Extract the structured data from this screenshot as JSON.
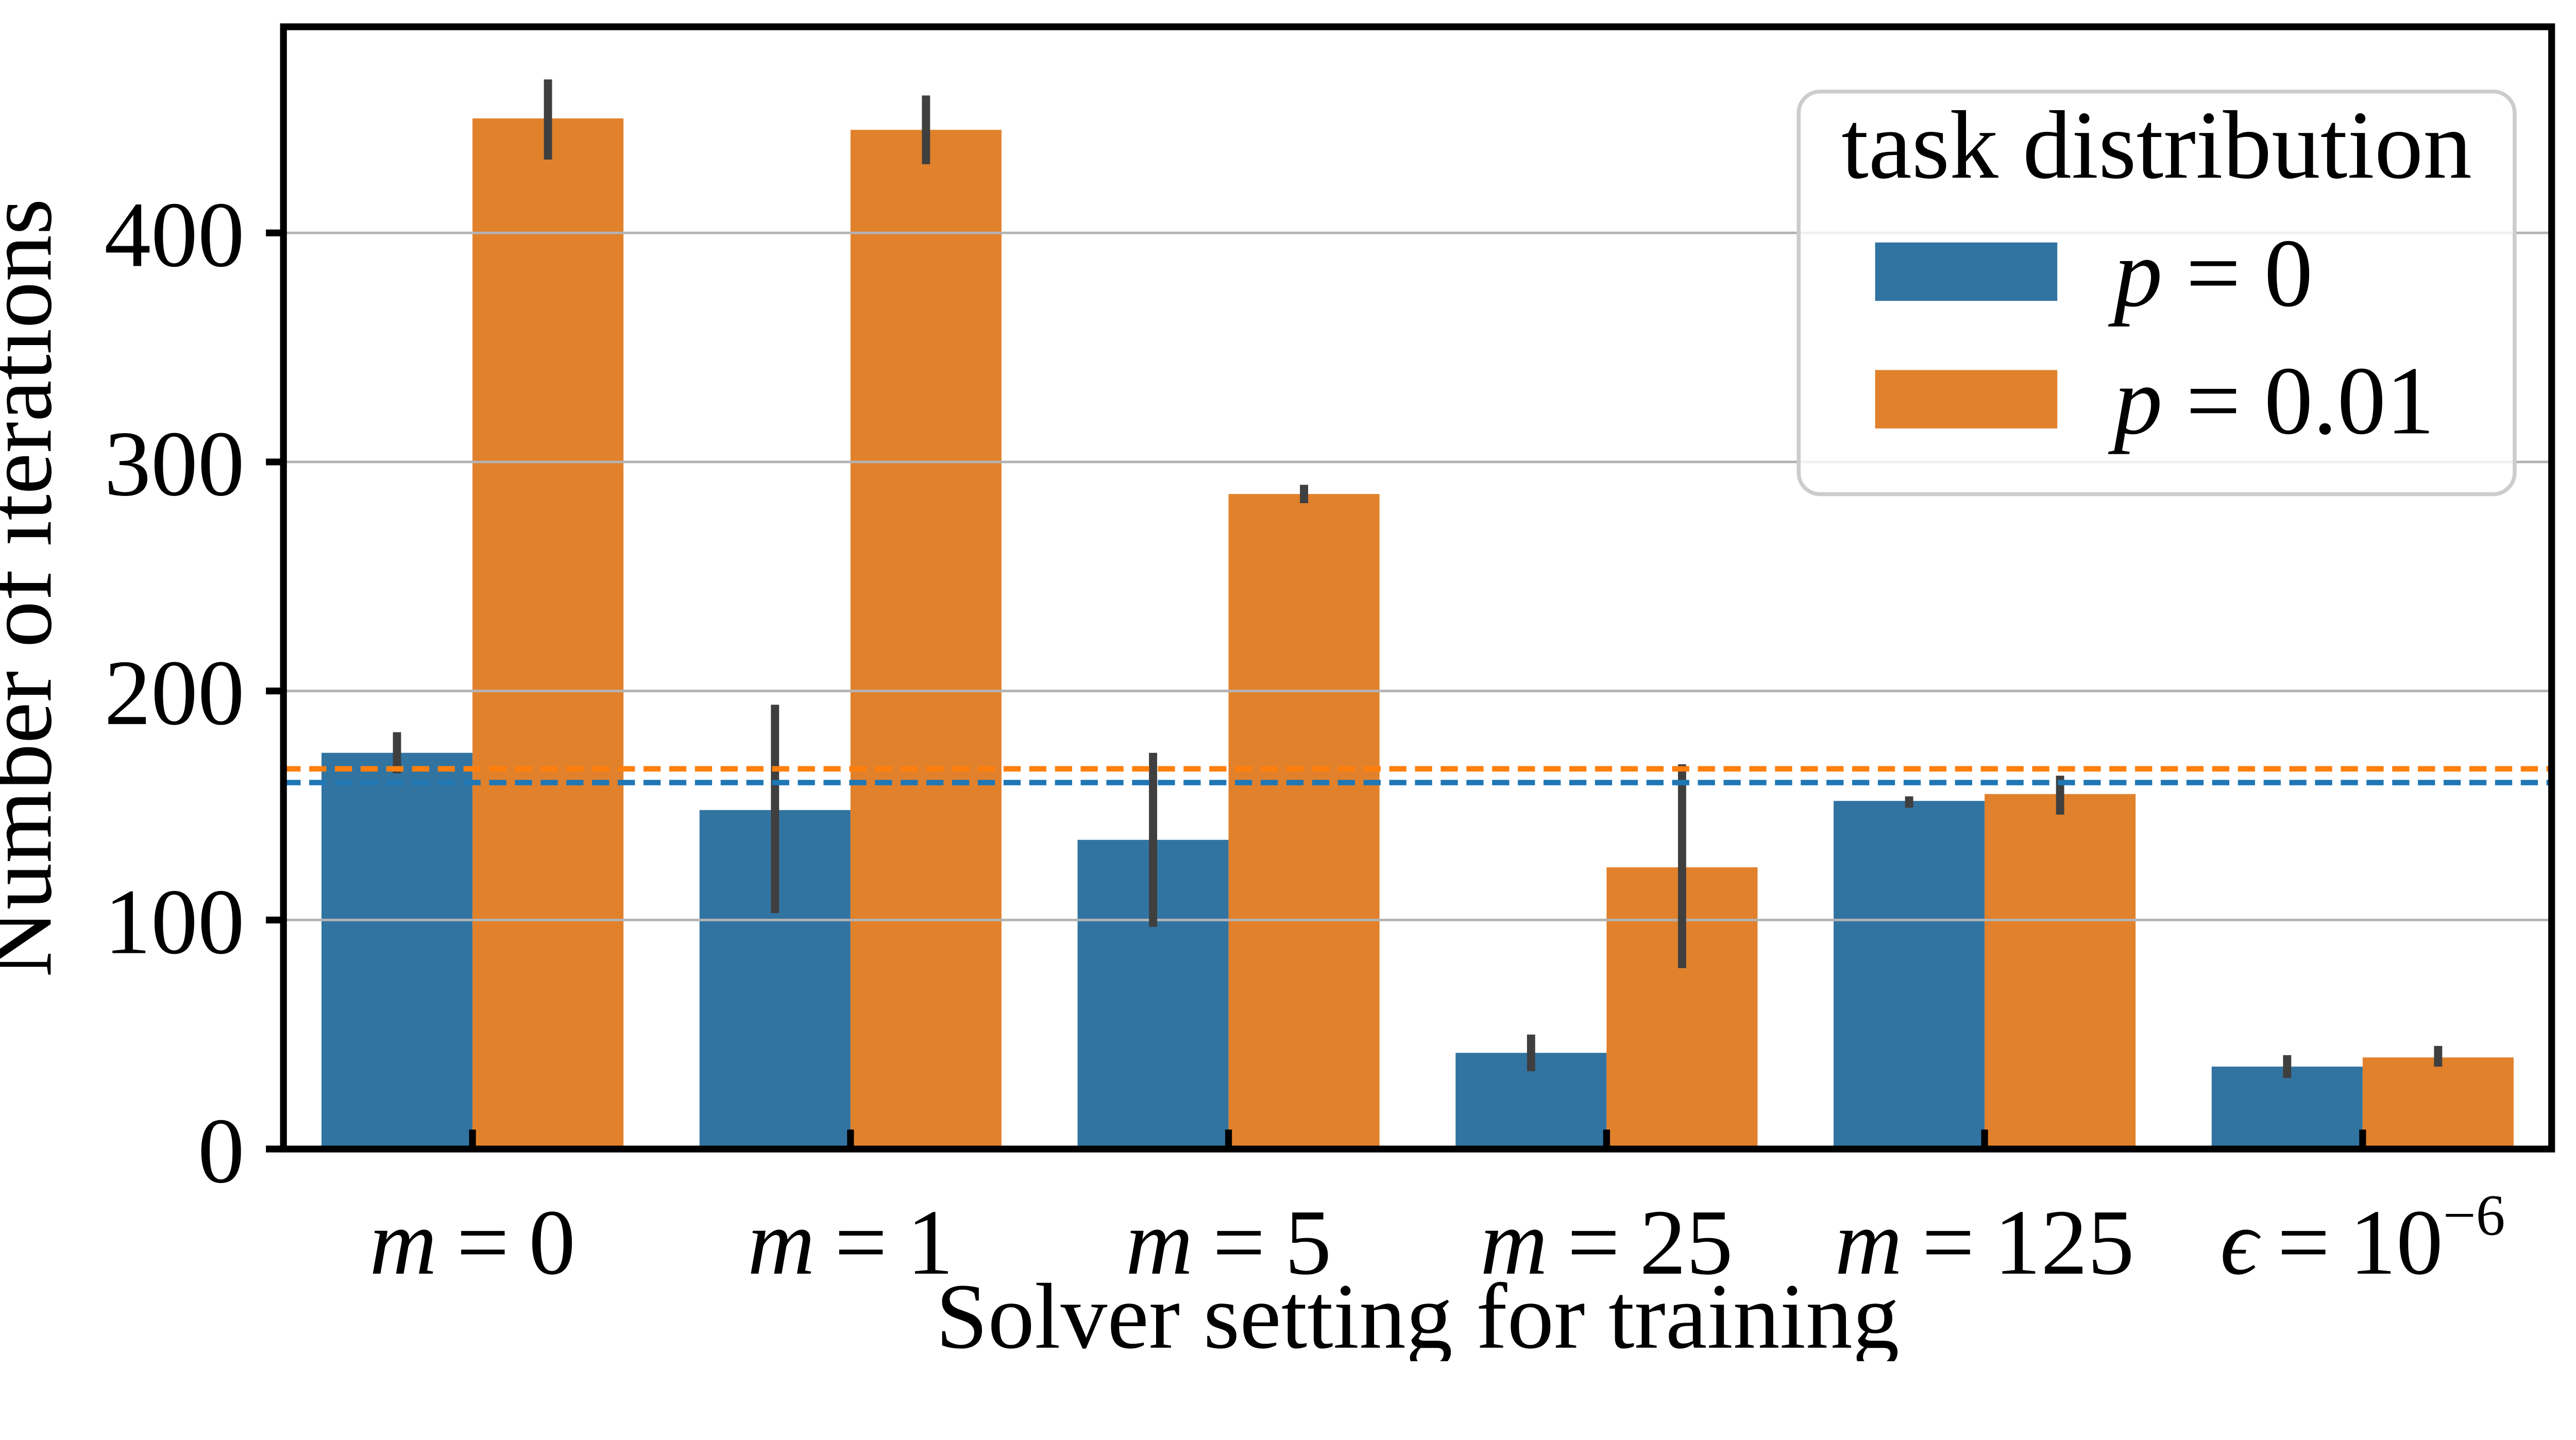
{
  "chart_data": {
    "type": "bar",
    "title": "",
    "xlabel": "Solver setting for training",
    "ylabel": "Number of iterations",
    "ylim": [
      0,
      490
    ],
    "ytick_values": [
      0,
      100,
      200,
      300,
      400
    ],
    "yticks": [
      "0",
      "100",
      "200",
      "300",
      "400"
    ],
    "grid": "horizontal gridlines on, drawn above bars",
    "grid_color": "#B3B3B3",
    "axis_color": "#000000",
    "error_bar_color": "#3F3F3F",
    "categories": [
      {
        "label": "m = 0",
        "var": "m",
        "eq": "=",
        "value": "0"
      },
      {
        "label": "m = 1",
        "var": "m",
        "eq": "=",
        "value": "1"
      },
      {
        "label": "m = 5",
        "var": "m",
        "eq": "=",
        "value": "5"
      },
      {
        "label": "m = 25",
        "var": "m",
        "eq": "=",
        "value": "25"
      },
      {
        "label": "m = 125",
        "var": "m",
        "eq": "=",
        "value": "125"
      },
      {
        "label": "ϵ = 10⁻⁶",
        "var": "ϵ",
        "eq": "=",
        "value": "10",
        "exponent": "−6"
      }
    ],
    "series": [
      {
        "name": "p = 0",
        "color": "#3274A1",
        "values": [
          173,
          148,
          135,
          42,
          152,
          36
        ],
        "err_low": [
          164,
          103,
          97,
          34,
          149,
          31
        ],
        "err_high": [
          182,
          194,
          173,
          50,
          154,
          41
        ],
        "mean_line": {
          "value": 160,
          "color": "#1F77B4",
          "style": "dashed"
        }
      },
      {
        "name": "p = 0.01",
        "color": "#E1812C",
        "values": [
          450,
          445,
          286,
          123,
          155,
          40
        ],
        "err_low": [
          432,
          430,
          282,
          79,
          146,
          36
        ],
        "err_high": [
          467,
          460,
          290,
          168,
          163,
          45
        ],
        "mean_line": {
          "value": 166,
          "color": "#FF7F0E",
          "style": "dashed"
        }
      }
    ]
  },
  "legend": {
    "title": "task distribution",
    "border_color": "#CCCCCC",
    "entries": [
      {
        "var": "p",
        "eq": "=",
        "value": "0"
      },
      {
        "var": "p",
        "eq": "=",
        "value": "0.01"
      }
    ]
  }
}
